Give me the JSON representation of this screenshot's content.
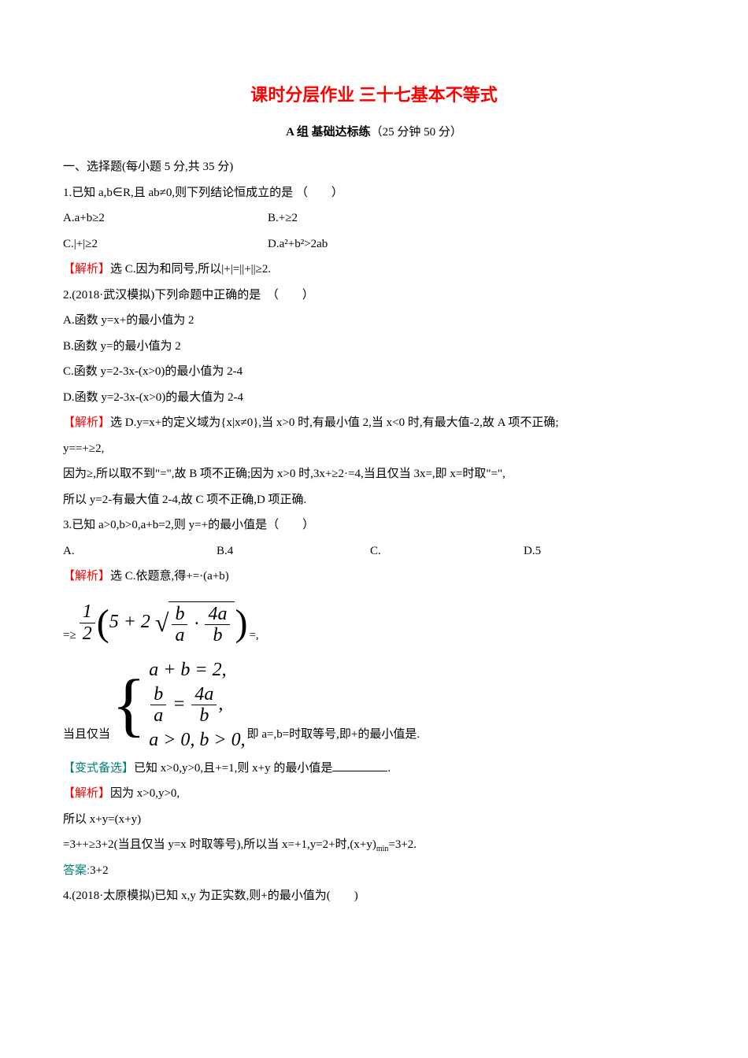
{
  "title": "课时分层作业 三十七基本不等式",
  "section_header_bold": "A 组 基础达标练",
  "section_header_note": "（25 分钟 50 分）",
  "h1": "一、选择题(每小题 5 分,共 35 分)",
  "q1": {
    "stem": "1.已知 a,b∈R,且 ab≠0,则下列结论恒成立的是 （　　）",
    "optA": "A.a+b≥2",
    "optB": "B.+≥2",
    "optC": "C.|+|≥2",
    "optD": "D.a²+b²>2ab",
    "sol_label": "【解析】",
    "sol_text": "选 C.因为和同号,所以|+|=||+||≥2."
  },
  "q2": {
    "stem": "2.(2018·武汉模拟)下列命题中正确的是　（　　）",
    "optA": "A.函数 y=x+的最小值为 2",
    "optB": "B.函数 y=的最小值为 2",
    "optC": "C.函数 y=2-3x-(x>0)的最小值为 2-4",
    "optD": "D.函数 y=2-3x-(x>0)的最大值为 2-4",
    "sol_label": "【解析】",
    "sol_line1": "选 D.y=x+的定义域为{x|x≠0},当 x>0 时,有最小值 2,当 x<0 时,有最大值-2,故 A 项不正确;",
    "sol_line2": "y==+≥2,",
    "sol_line3": "因为≥,所以取不到\"=\",故 B 项不正确;因为 x>0 时,3x+≥2·=4,当且仅当 3x=,即 x=时取\"=\",",
    "sol_line4": "所以 y=2-有最大值 2-4,故 C 项不正确,D 项正确."
  },
  "q3": {
    "stem": "3.已知 a>0,b>0,a+b=2,则 y=+的最小值是（　　）",
    "optA": "A.",
    "optB": "B.4",
    "optC": "C.",
    "optD": "D.5",
    "sol_label": "【解析】",
    "sol_text": "选 C.依题意,得+=·(a+b)",
    "math1_prefix": "=≥",
    "math1_frac_num": "1",
    "math1_frac_den": "2",
    "math1_five": "5 + 2",
    "math1_sqrt_ba_num": "b",
    "math1_sqrt_ba_den": "a",
    "math1_dot": "·",
    "math1_sqrt_4ab_num": "4a",
    "math1_sqrt_4ab_den": "b",
    "math1_suffix": "=,",
    "cond_prefix": "当且仅当",
    "cond_row1": "a + b = 2,",
    "cond_row2_l_num": "b",
    "cond_row2_l_den": "a",
    "cond_row2_eq": "=",
    "cond_row2_r_num": "4a",
    "cond_row2_r_den": "b",
    "cond_row2_comma": ",",
    "cond_row3": "a > 0, b > 0,",
    "cond_suffix": " 即 a=,b=时取等号,即+的最小值是."
  },
  "variant": {
    "label": "【变式备选】",
    "stem": "已知 x>0,y>0,且+=1,则 x+y 的最小值是",
    "blank_dot": ".",
    "sol_label": "【解析】",
    "sol_line1": "因为 x>0,y>0,",
    "sol_line2": "所以 x+y=(x+y)",
    "sol_line3_a": "=3++≥3+2(当且仅当 y=x 时取等号),所以当 x=+1,y=2+时,(x+y)",
    "sol_line3_min": "min",
    "sol_line3_b": "=3+2.",
    "ans_label": "答案:",
    "ans_text": "3+2"
  },
  "q4": {
    "stem": "4.(2018·太原模拟)已知 x,y 为正实数,则+的最小值为(　　)"
  },
  "colors": {
    "title": "#ff0000",
    "sol_bracket": "#ff0000",
    "variant": "#008080",
    "answer": "#008080",
    "text": "#000000",
    "background": "#ffffff"
  },
  "typography": {
    "title_fontsize": 22,
    "body_fontsize": 15,
    "math_fontsize": 24,
    "line_height": 1.9
  }
}
